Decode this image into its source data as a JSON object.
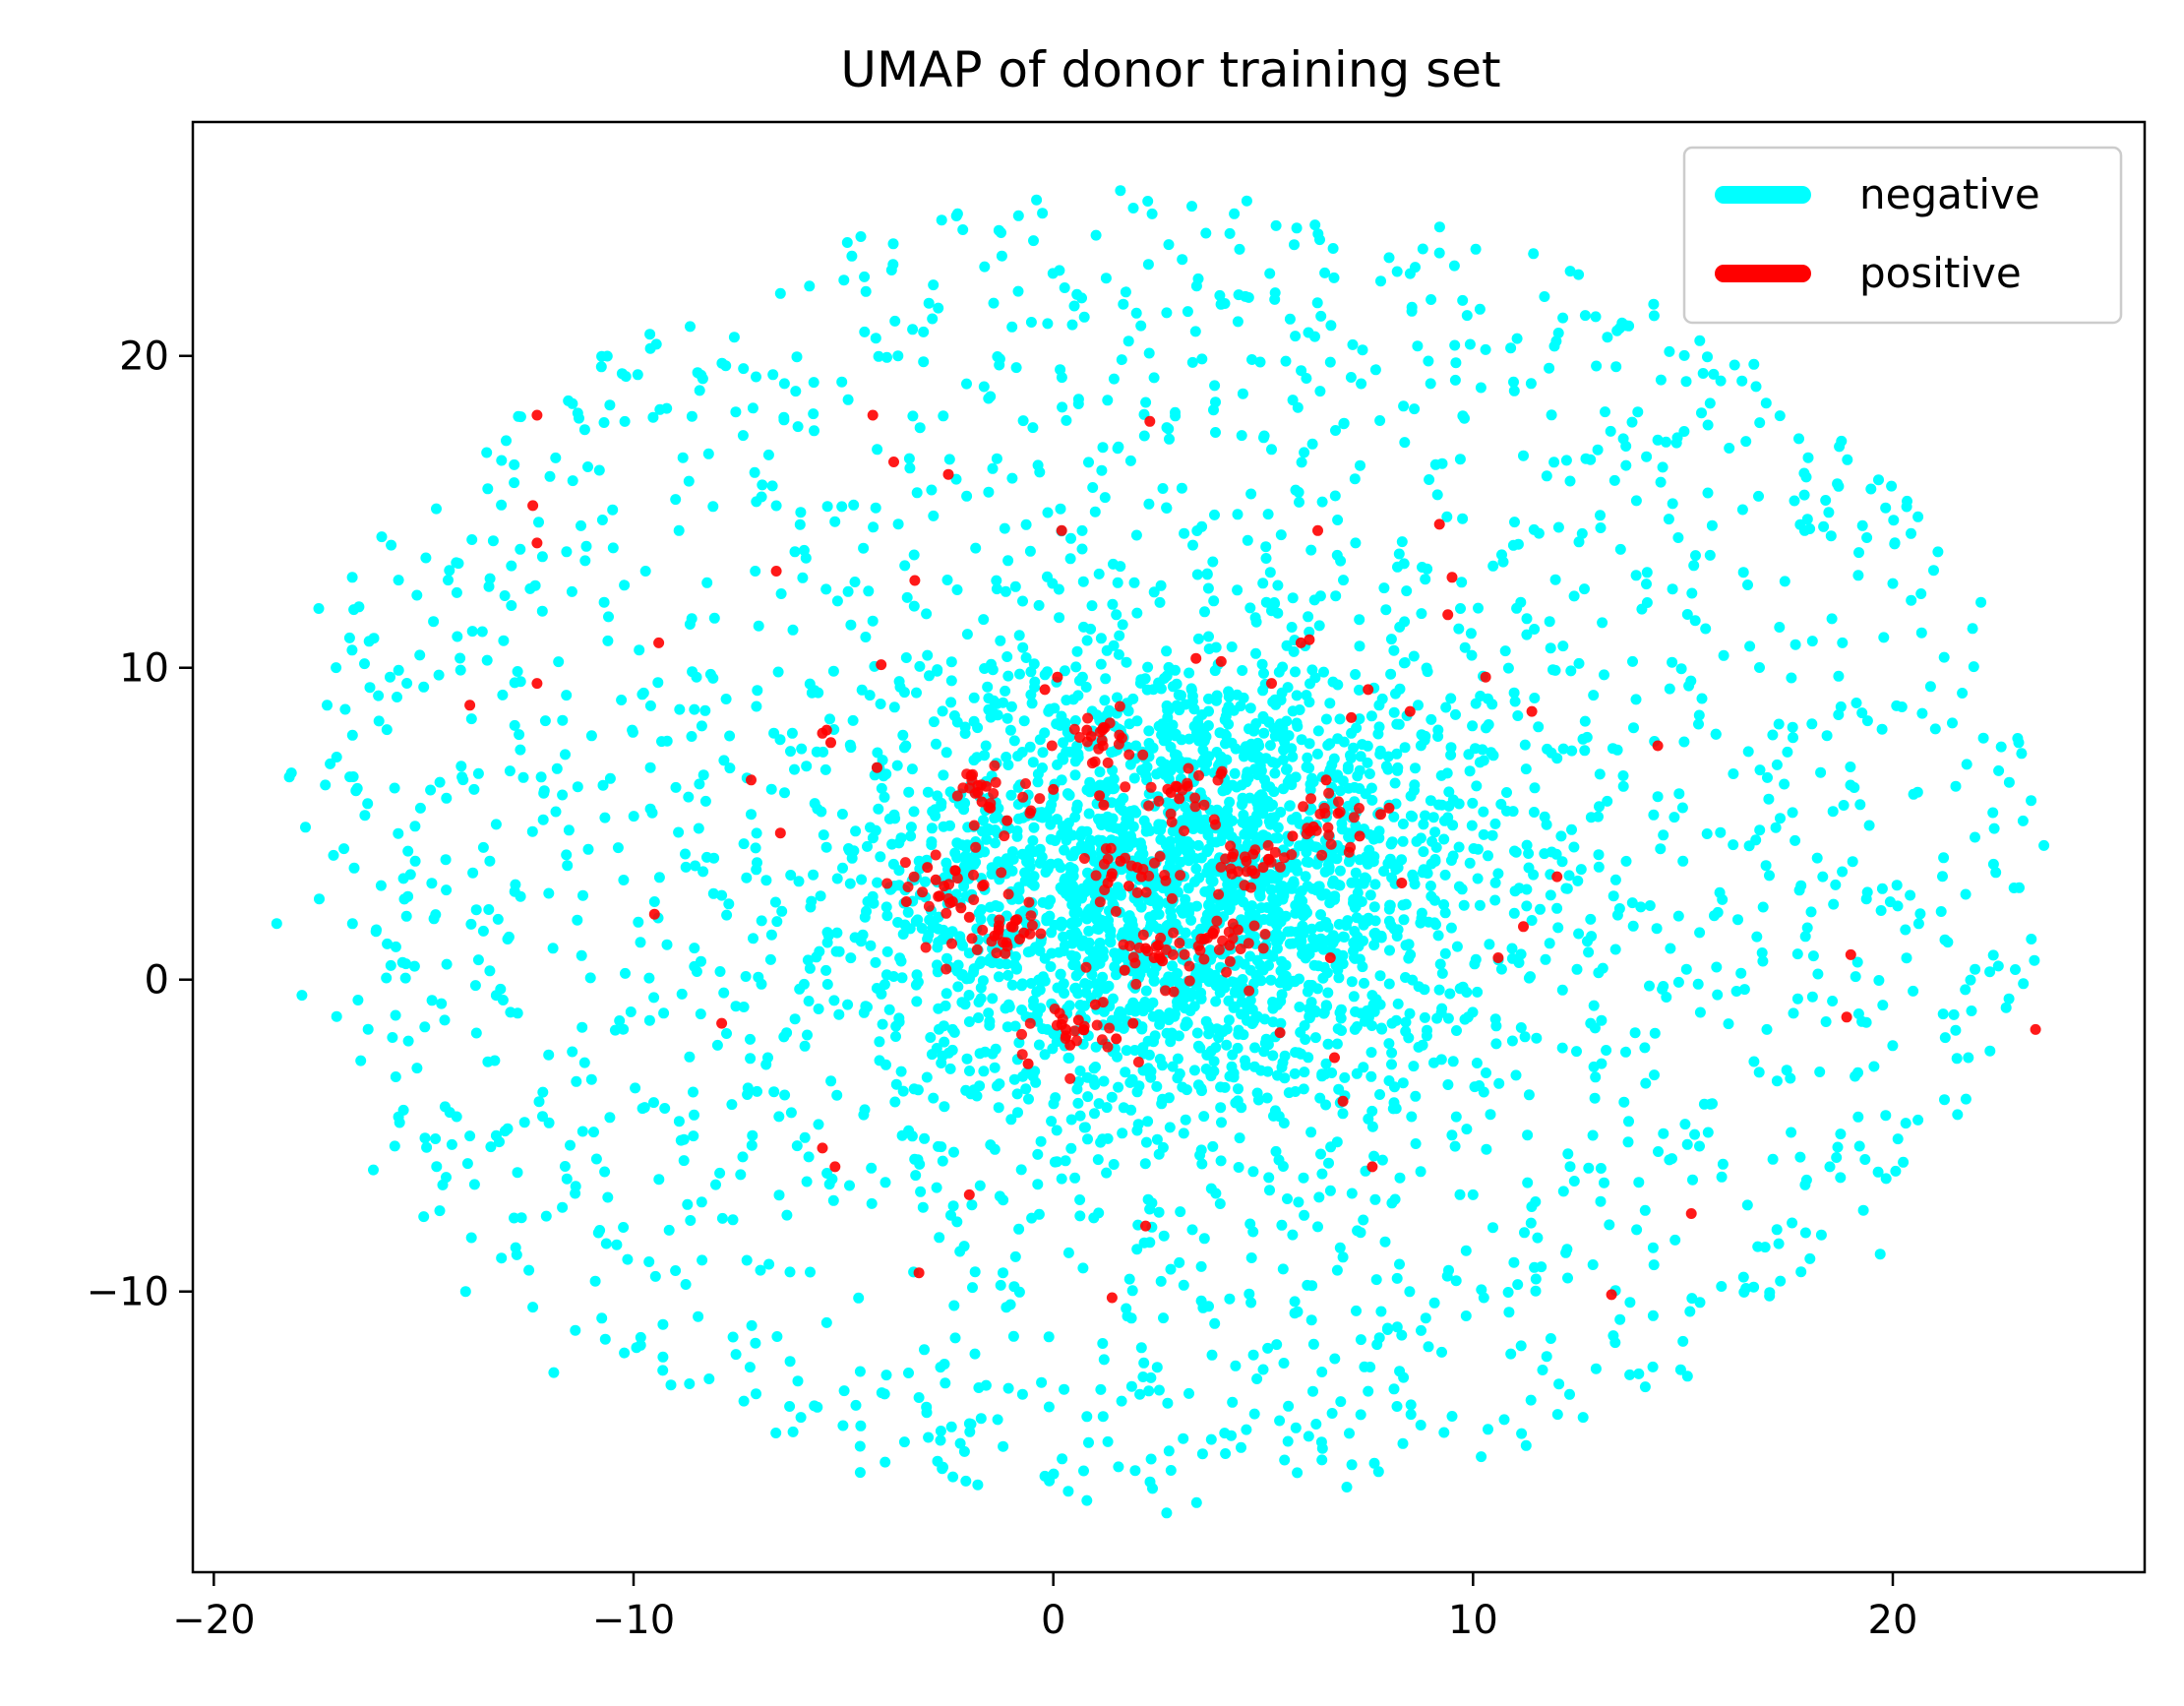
{
  "chart_data": {
    "type": "scatter",
    "title": "UMAP of donor training set",
    "xlabel": "",
    "ylabel": "",
    "xlim": [
      -20.5,
      26
    ],
    "ylim": [
      -19,
      27.5
    ],
    "xticks": [
      -20,
      -10,
      0,
      10,
      20
    ],
    "yticks": [
      -10,
      0,
      10,
      20
    ],
    "xtick_labels": [
      "−20",
      "−10",
      "0",
      "10",
      "20"
    ],
    "ytick_labels": [
      "−10",
      "0",
      "10",
      "20"
    ],
    "grid": false,
    "legend_position": "top-right",
    "series": [
      {
        "name": "negative",
        "color": "#00ffff",
        "note_shape": "dense roughly elliptical cloud",
        "points": [
          [
            -18.5,
            1.8
          ],
          [
            -18.2,
            6.5
          ],
          [
            -17.9,
            -0.5
          ],
          [
            -17.5,
            11.9
          ],
          [
            -17.3,
            8.8
          ],
          [
            -16.9,
            4.2
          ],
          [
            -16.7,
            12.9
          ],
          [
            -16.5,
            -2.6
          ],
          [
            -16.2,
            -6.1
          ],
          [
            -16.0,
            14.2
          ],
          [
            -15.8,
            9.7
          ],
          [
            -15.6,
            -4.4
          ],
          [
            -15.2,
            3.8
          ],
          [
            -15.0,
            -7.6
          ],
          [
            -14.7,
            15.1
          ],
          [
            -14.5,
            -1.3
          ],
          [
            -14.2,
            11.0
          ],
          [
            -14.0,
            -10.0
          ],
          [
            -13.8,
            6.1
          ],
          [
            -13.5,
            16.9
          ],
          [
            -13.2,
            -5.2
          ],
          [
            -13.0,
            1.3
          ],
          [
            -12.7,
            13.8
          ],
          [
            -12.4,
            -10.5
          ],
          [
            -12.1,
            8.3
          ],
          [
            -11.9,
            -12.6
          ],
          [
            -11.6,
            4.0
          ],
          [
            -11.3,
            18.0
          ],
          [
            -11.0,
            -3.2
          ],
          [
            -10.7,
            12.1
          ],
          [
            -10.4,
            -8.5
          ],
          [
            -10.2,
            0.2
          ],
          [
            -9.9,
            19.4
          ],
          [
            -9.6,
            6.8
          ],
          [
            -9.3,
            -12.1
          ],
          [
            -9.0,
            15.4
          ],
          [
            -8.8,
            -5.8
          ],
          [
            -8.5,
            9.7
          ],
          [
            -8.2,
            -12.8
          ],
          [
            -7.9,
            2.7
          ],
          [
            -7.6,
            20.6
          ],
          [
            -7.3,
            -9.0
          ],
          [
            -7.1,
            13.1
          ],
          [
            -6.8,
            -2.5
          ],
          [
            -6.5,
            22.0
          ],
          [
            -6.2,
            -14.5
          ],
          [
            -6.0,
            7.4
          ],
          [
            -5.7,
            17.6
          ],
          [
            -5.4,
            -11.0
          ],
          [
            -5.1,
            0.9
          ],
          [
            -4.8,
            23.2
          ],
          [
            -4.6,
            -15.8
          ],
          [
            -4.3,
            11.5
          ],
          [
            -4.0,
            -6.5
          ],
          [
            -3.7,
            20.0
          ],
          [
            -3.4,
            4.6
          ],
          [
            -3.2,
            -13.4
          ],
          [
            -2.9,
            15.7
          ],
          [
            -2.6,
            -2.0
          ],
          [
            -2.3,
            24.5
          ],
          [
            -2.1,
            8.1
          ],
          [
            -1.8,
            -16.2
          ],
          [
            -1.5,
            18.7
          ],
          [
            -1.2,
            -9.4
          ],
          [
            -0.9,
            12.6
          ],
          [
            -0.7,
            2.2
          ],
          [
            -0.4,
            25.0
          ],
          [
            -0.1,
            -13.7
          ],
          [
            0.2,
            6.4
          ],
          [
            0.5,
            21.6
          ],
          [
            0.8,
            -16.7
          ],
          [
            1.0,
            15.0
          ],
          [
            1.3,
            -5.1
          ],
          [
            1.6,
            25.3
          ],
          [
            1.9,
            9.0
          ],
          [
            2.1,
            -11.8
          ],
          [
            2.4,
            19.3
          ],
          [
            2.7,
            -17.1
          ],
          [
            3.0,
            4.5
          ],
          [
            3.3,
            24.8
          ],
          [
            3.6,
            -8.3
          ],
          [
            3.8,
            13.4
          ],
          [
            4.1,
            -15.2
          ],
          [
            4.4,
            21.1
          ],
          [
            4.7,
            0.3
          ],
          [
            5.0,
            -12.5
          ],
          [
            5.2,
            17.0
          ],
          [
            5.5,
            -4.6
          ],
          [
            5.8,
            24.1
          ],
          [
            6.1,
            8.9
          ],
          [
            6.4,
            -15.4
          ],
          [
            6.6,
            19.8
          ],
          [
            6.9,
            -8.9
          ],
          [
            7.2,
            14.0
          ],
          [
            7.5,
            -13.2
          ],
          [
            7.8,
            22.4
          ],
          [
            8.0,
            5.6
          ],
          [
            8.3,
            -11.4
          ],
          [
            8.6,
            18.3
          ],
          [
            8.9,
            -1.8
          ],
          [
            9.2,
            23.3
          ],
          [
            9.5,
            -14.0
          ],
          [
            9.7,
            11.9
          ],
          [
            10.0,
            -6.9
          ],
          [
            10.3,
            20.2
          ],
          [
            10.6,
            3.4
          ],
          [
            10.9,
            -12.0
          ],
          [
            11.2,
            16.8
          ],
          [
            11.5,
            -9.6
          ],
          [
            11.7,
            21.9
          ],
          [
            12.0,
            7.1
          ],
          [
            12.3,
            -13.3
          ],
          [
            12.6,
            14.3
          ],
          [
            12.9,
            -3.8
          ],
          [
            13.2,
            20.6
          ],
          [
            13.5,
            -10.9
          ],
          [
            13.8,
            10.2
          ],
          [
            14.1,
            -7.4
          ],
          [
            14.4,
            17.3
          ],
          [
            14.7,
            1.0
          ],
          [
            15.0,
            -11.6
          ],
          [
            15.3,
            13.6
          ],
          [
            15.6,
            -4.9
          ],
          [
            15.9,
            19.2
          ],
          [
            16.2,
            6.6
          ],
          [
            16.5,
            -9.9
          ],
          [
            16.8,
            15.5
          ],
          [
            17.0,
            -1.6
          ],
          [
            17.3,
            11.3
          ],
          [
            17.6,
            -7.8
          ],
          [
            17.9,
            14.4
          ],
          [
            18.2,
            3.9
          ],
          [
            18.5,
            -6.0
          ],
          [
            18.8,
            10.8
          ],
          [
            19.1,
            -3.1
          ],
          [
            19.4,
            8.3
          ],
          [
            19.7,
            -8.8
          ],
          [
            20.0,
            12.7
          ],
          [
            20.3,
            1.6
          ],
          [
            20.6,
            -4.5
          ],
          [
            20.9,
            9.4
          ],
          [
            21.2,
            -1.1
          ],
          [
            21.5,
            6.2
          ],
          [
            21.8,
            -2.5
          ],
          [
            22.1,
            12.1
          ],
          [
            22.4,
            3.7
          ],
          [
            22.7,
            -0.9
          ],
          [
            23.0,
            7.6
          ],
          [
            23.3,
            1.3
          ],
          [
            23.6,
            4.3
          ],
          [
            -9.5,
            2.5
          ],
          [
            -8.4,
            -1.1
          ],
          [
            -7.2,
            5.3
          ],
          [
            -6.4,
            -3.7
          ],
          [
            -5.6,
            9.2
          ],
          [
            -4.9,
            -0.8
          ],
          [
            -4.2,
            6.8
          ],
          [
            -3.6,
            -5.0
          ],
          [
            -3.0,
            10.4
          ],
          [
            -2.4,
            -1.6
          ],
          [
            -1.9,
            4.9
          ],
          [
            -1.3,
            -4.1
          ],
          [
            -0.8,
            9.8
          ],
          [
            -0.2,
            -2.4
          ],
          [
            0.4,
            7.3
          ],
          [
            0.9,
            -0.6
          ],
          [
            1.5,
            11.7
          ],
          [
            2.0,
            -3.6
          ],
          [
            2.6,
            8.2
          ],
          [
            3.2,
            -1.4
          ],
          [
            3.7,
            11.0
          ],
          [
            4.3,
            -3.0
          ],
          [
            4.9,
            7.5
          ],
          [
            5.4,
            -0.1
          ],
          [
            6.0,
            10.7
          ],
          [
            6.5,
            -2.7
          ],
          [
            7.1,
            7.9
          ],
          [
            7.6,
            -0.5
          ],
          [
            8.2,
            6.7
          ],
          [
            8.8,
            -2.1
          ],
          [
            9.4,
            5.2
          ],
          [
            10.1,
            -0.4
          ],
          [
            10.8,
            6.0
          ],
          [
            11.4,
            1.9
          ],
          [
            12.1,
            4.6
          ],
          [
            12.8,
            -1.4
          ],
          [
            13.4,
            3.2
          ],
          [
            14.2,
            -0.2
          ],
          [
            15.0,
            3.8
          ],
          [
            15.8,
            0.4
          ]
        ]
      },
      {
        "name": "positive",
        "color": "#ff0000",
        "note_shape": "clustered near center",
        "points": [
          [
            -12.3,
            18.1
          ],
          [
            -12.4,
            15.2
          ],
          [
            -12.3,
            14.0
          ],
          [
            -12.3,
            9.5
          ],
          [
            -13.9,
            8.8
          ],
          [
            -9.4,
            10.8
          ],
          [
            -9.5,
            2.1
          ],
          [
            -7.9,
            -1.4
          ],
          [
            -7.2,
            6.4
          ],
          [
            -6.6,
            13.1
          ],
          [
            -6.5,
            4.7
          ],
          [
            -5.5,
            7.9
          ],
          [
            -5.4,
            8.0
          ],
          [
            -5.3,
            7.6
          ],
          [
            -5.5,
            -5.4
          ],
          [
            -5.2,
            -6.0
          ],
          [
            -4.2,
            6.8
          ],
          [
            -4.1,
            10.1
          ],
          [
            -4.3,
            18.1
          ],
          [
            -3.8,
            16.6
          ],
          [
            -3.5,
            2.5
          ],
          [
            -3.3,
            12.8
          ],
          [
            -3.2,
            -9.4
          ],
          [
            -3.0,
            3.6
          ],
          [
            -2.8,
            3.2
          ],
          [
            -2.6,
            3.0
          ],
          [
            -2.5,
            16.2
          ],
          [
            -2.4,
            2.5
          ],
          [
            -2.2,
            2.3
          ],
          [
            -2.0,
            2.0
          ],
          [
            -1.8,
            6.0
          ],
          [
            -1.7,
            5.7
          ],
          [
            -1.6,
            6.2
          ],
          [
            -1.5,
            5.5
          ],
          [
            -1.4,
            1.4
          ],
          [
            -1.3,
            1.6
          ],
          [
            -1.2,
            1.2
          ],
          [
            -1.1,
            5.1
          ],
          [
            -1.0,
            1.7
          ],
          [
            -0.9,
            1.9
          ],
          [
            -0.8,
            1.3
          ],
          [
            -0.7,
            1.5
          ],
          [
            -0.6,
            -2.7
          ],
          [
            -0.2,
            9.3
          ],
          [
            0.0,
            6.1
          ],
          [
            0.1,
            9.7
          ],
          [
            0.2,
            14.4
          ],
          [
            0.3,
            -1.6
          ],
          [
            0.4,
            -2.1
          ],
          [
            0.6,
            -1.3
          ],
          [
            0.8,
            8.0
          ],
          [
            0.9,
            7.8
          ],
          [
            1.0,
            -0.8
          ],
          [
            1.1,
            5.9
          ],
          [
            1.2,
            5.6
          ],
          [
            1.3,
            3.1
          ],
          [
            1.4,
            3.4
          ],
          [
            1.5,
            -1.9
          ],
          [
            1.6,
            3.8
          ],
          [
            1.7,
            0.3
          ],
          [
            1.8,
            3.0
          ],
          [
            1.9,
            -1.4
          ],
          [
            2.0,
            3.6
          ],
          [
            2.1,
            3.3
          ],
          [
            2.2,
            1.0
          ],
          [
            2.3,
            17.9
          ],
          [
            2.4,
            0.7
          ],
          [
            2.5,
            1.1
          ],
          [
            2.6,
            0.6
          ],
          [
            2.8,
            6.0
          ],
          [
            3.0,
            5.8
          ],
          [
            3.2,
            6.2
          ],
          [
            3.4,
            10.3
          ],
          [
            3.6,
            1.3
          ],
          [
            3.8,
            1.5
          ],
          [
            4.0,
            10.2
          ],
          [
            4.2,
            1.1
          ],
          [
            4.4,
            1.6
          ],
          [
            4.6,
            3.8
          ],
          [
            4.8,
            3.4
          ],
          [
            5.0,
            3.6
          ],
          [
            5.2,
            9.5
          ],
          [
            5.4,
            -1.7
          ],
          [
            5.7,
            4.6
          ],
          [
            5.9,
            10.8
          ],
          [
            6.1,
            10.9
          ],
          [
            6.2,
            4.9
          ],
          [
            6.3,
            14.4
          ],
          [
            6.5,
            6.4
          ],
          [
            6.6,
            0.7
          ],
          [
            6.7,
            -2.5
          ],
          [
            6.9,
            -3.9
          ],
          [
            7.1,
            8.4
          ],
          [
            7.3,
            4.6
          ],
          [
            7.5,
            9.3
          ],
          [
            7.6,
            -6.0
          ],
          [
            7.8,
            5.3
          ],
          [
            8.0,
            5.5
          ],
          [
            8.3,
            3.1
          ],
          [
            8.5,
            8.6
          ],
          [
            9.2,
            14.6
          ],
          [
            9.4,
            11.7
          ],
          [
            9.5,
            12.9
          ],
          [
            10.3,
            9.7
          ],
          [
            10.6,
            0.7
          ],
          [
            11.2,
            1.7
          ],
          [
            11.4,
            8.6
          ],
          [
            12.0,
            3.3
          ],
          [
            13.3,
            -10.1
          ],
          [
            14.4,
            7.5
          ],
          [
            15.2,
            -7.5
          ],
          [
            18.9,
            -1.2
          ],
          [
            19.0,
            0.8
          ],
          [
            23.4,
            -1.6
          ],
          [
            1.4,
            -10.2
          ],
          [
            2.2,
            -7.9
          ],
          [
            -2.0,
            -6.9
          ]
        ]
      }
    ]
  }
}
